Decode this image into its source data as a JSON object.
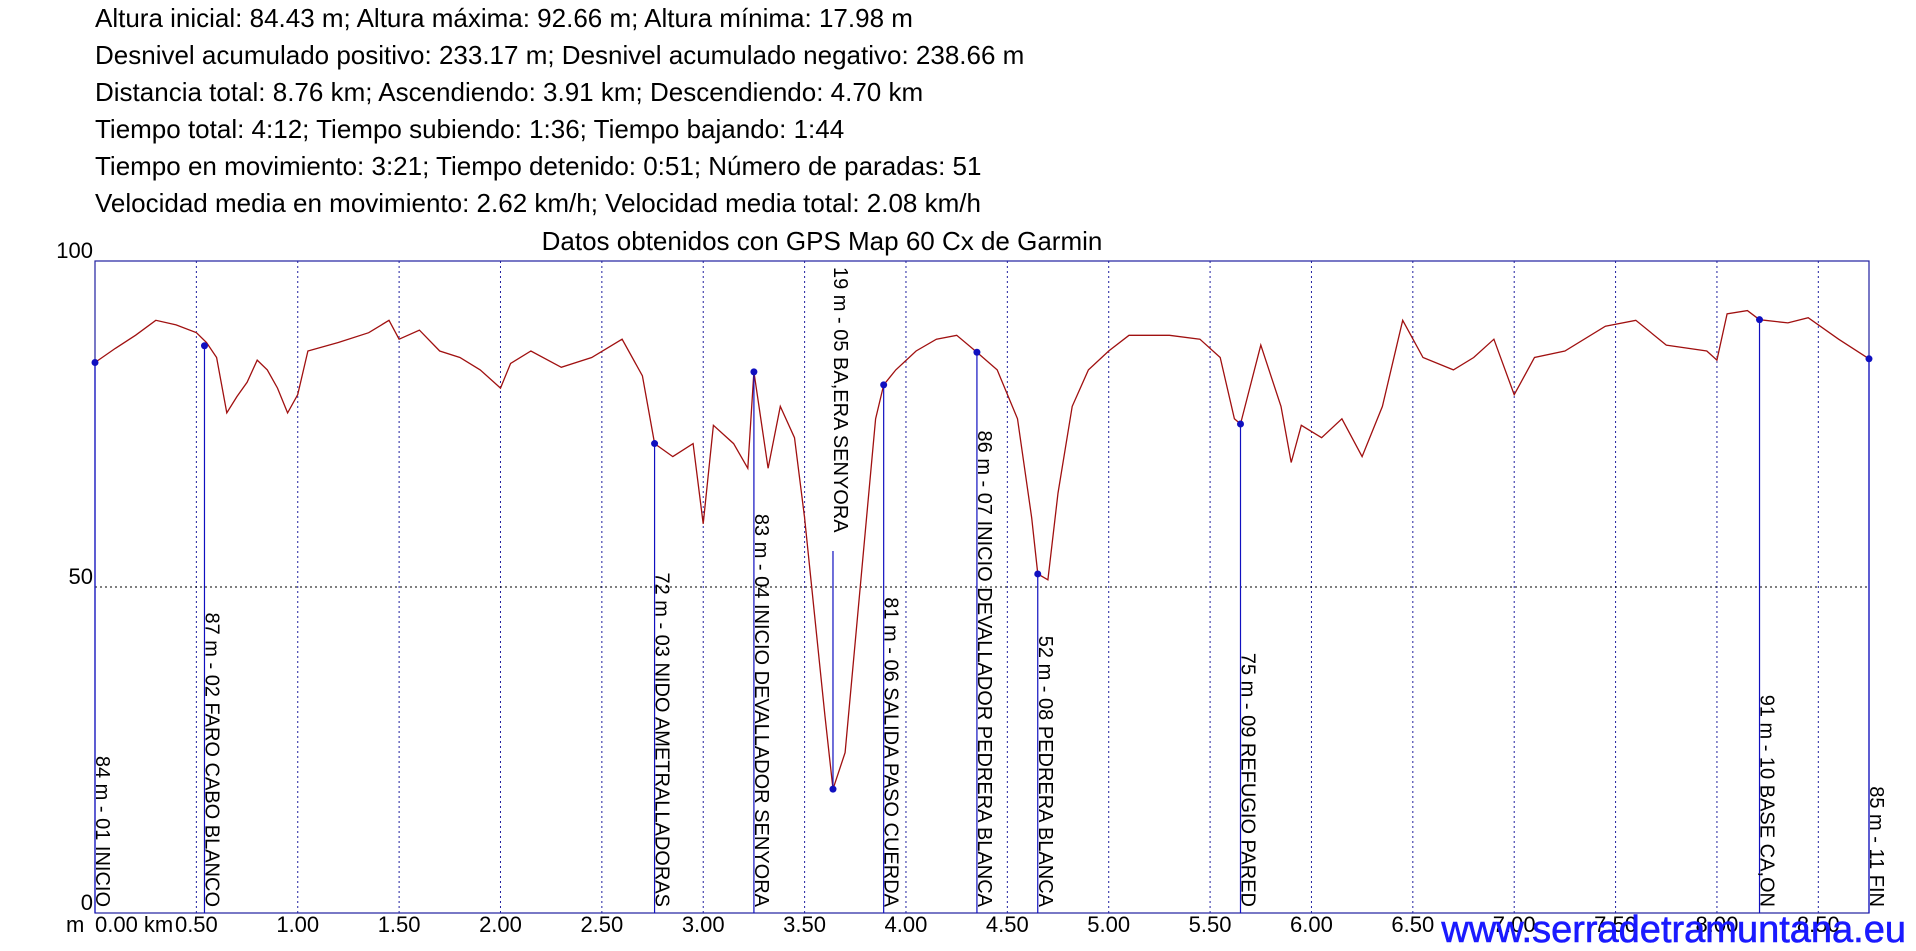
{
  "chart_data": {
    "type": "line",
    "stats": [
      "Altura inicial: 84.43 m; Altura máxima: 92.66 m; Altura mínima: 17.98 m",
      "Desnivel acumulado positivo: 233.17 m; Desnivel acumulado negativo: 238.66 m",
      "Distancia total: 8.76 km; Ascendiendo: 3.91 km; Descendiendo: 4.70 km",
      "Tiempo total: 4:12; Tiempo subiendo: 1:36; Tiempo bajando: 1:44",
      "Tiempo en movimiento: 3:21; Tiempo detenido: 0:51; Número de paradas: 51",
      "Velocidad media en movimiento: 2.62 km/h; Velocidad media total: 2.08 km/h"
    ],
    "title": "Datos obtenidos con GPS Map 60 Cx de Garmin",
    "y_label": "m",
    "watermark": "www.serradetramuntana.eu",
    "xlim": [
      0,
      8.75
    ],
    "ylim": [
      0,
      100
    ],
    "xticks": [
      {
        "value": 0,
        "label": "0.00 km"
      },
      {
        "value": 0.5,
        "label": "0.50"
      },
      {
        "value": 1,
        "label": "1.00"
      },
      {
        "value": 1.5,
        "label": "1.50"
      },
      {
        "value": 2,
        "label": "2.00"
      },
      {
        "value": 2.5,
        "label": "2.50"
      },
      {
        "value": 3,
        "label": "3.00"
      },
      {
        "value": 3.5,
        "label": "3.50"
      },
      {
        "value": 4,
        "label": "4.00"
      },
      {
        "value": 4.5,
        "label": "4.50"
      },
      {
        "value": 5,
        "label": "5.00"
      },
      {
        "value": 5.5,
        "label": "5.50"
      },
      {
        "value": 6,
        "label": "6.00"
      },
      {
        "value": 6.5,
        "label": "6.50"
      },
      {
        "value": 7,
        "label": "7.00"
      },
      {
        "value": 7.5,
        "label": "7.50"
      },
      {
        "value": 8,
        "label": "8.00"
      },
      {
        "value": 8.5,
        "label": "8.50"
      }
    ],
    "yticks": [
      0,
      50,
      100
    ],
    "grid": true,
    "x": [
      0,
      0.1,
      0.2,
      0.3,
      0.4,
      0.5,
      0.55,
      0.6,
      0.65,
      0.7,
      0.75,
      0.8,
      0.85,
      0.9,
      0.95,
      1.0,
      1.05,
      1.2,
      1.35,
      1.45,
      1.5,
      1.6,
      1.7,
      1.8,
      1.9,
      2.0,
      2.05,
      2.15,
      2.3,
      2.45,
      2.6,
      2.7,
      2.76,
      2.85,
      2.95,
      3.0,
      3.05,
      3.15,
      3.22,
      3.25,
      3.32,
      3.38,
      3.45,
      3.5,
      3.55,
      3.6,
      3.64,
      3.7,
      3.75,
      3.8,
      3.85,
      3.89,
      3.95,
      4.05,
      4.15,
      4.25,
      4.35,
      4.45,
      4.55,
      4.62,
      4.65,
      4.7,
      4.75,
      4.82,
      4.9,
      5.0,
      5.1,
      5.3,
      5.45,
      5.55,
      5.62,
      5.65,
      5.75,
      5.85,
      5.9,
      5.95,
      6.05,
      6.15,
      6.25,
      6.35,
      6.45,
      6.55,
      6.7,
      6.8,
      6.9,
      7.0,
      7.1,
      7.25,
      7.45,
      7.6,
      7.75,
      7.95,
      8.0,
      8.05,
      8.15,
      8.21,
      8.35,
      8.45,
      8.6,
      8.75
    ],
    "series": [
      {
        "color": "#a01010",
        "values": [
          84.43,
          86.6,
          88.6,
          90.9,
          90.2,
          89,
          87.5,
          85.2,
          76.7,
          79.2,
          81.4,
          84.8,
          83.3,
          80.5,
          76.7,
          79.5,
          86.2,
          87.5,
          89,
          90.9,
          88,
          89.4,
          86.2,
          85.2,
          83.3,
          80.5,
          84.3,
          86.2,
          83.7,
          85.2,
          88,
          82.4,
          72,
          70,
          72,
          59.7,
          74.8,
          72,
          68.2,
          83,
          68.2,
          77.7,
          72.9,
          60.6,
          45.5,
          30.3,
          19,
          24.6,
          41.7,
          58.7,
          75.8,
          81,
          83.3,
          86.2,
          88,
          88.6,
          86,
          83.3,
          75.8,
          60.6,
          52,
          51.1,
          64.4,
          77.7,
          83.3,
          86.2,
          88.6,
          88.6,
          88,
          85.2,
          75.8,
          75,
          87.1,
          77.7,
          69.1,
          74.8,
          72.9,
          75.8,
          70,
          77.7,
          90.9,
          85.2,
          83.3,
          85.2,
          88,
          79.5,
          85.2,
          86.2,
          90,
          90.9,
          87.1,
          86.2,
          84.8,
          91.9,
          92.4,
          91,
          90.5,
          91.3,
          88,
          85
        ]
      }
    ],
    "points": {
      "color": "#1010c0",
      "x": [
        0,
        0.54,
        2.76,
        3.25,
        3.64,
        3.89,
        4.35,
        4.65,
        5.65,
        8.21,
        8.75
      ],
      "values": [
        84.43,
        87,
        72,
        83,
        19,
        81,
        86,
        52,
        75,
        91,
        85
      ],
      "labels": [
        "84 m - 01 INICIO",
        "87 m - 02 FARO CABO BLANCO",
        "72 m - 03 NIDO AMETRALLADORAS",
        "83 m - 04 INICIO DEVALLADOR SENYORA",
        "19 m - 05 BA,ERA SENYORA",
        "81 m - 06 SALIDA PASO CUERDA",
        "86 m - 07 INICIO DEVALLADOR PEDRERA BLANCA",
        "52 m - 08 PEDRERA BLANCA",
        "75 m - 09 REFUGIO PARED",
        "91 m - 10 BASE CA,ON",
        "85 m - 11 FIN"
      ]
    }
  }
}
